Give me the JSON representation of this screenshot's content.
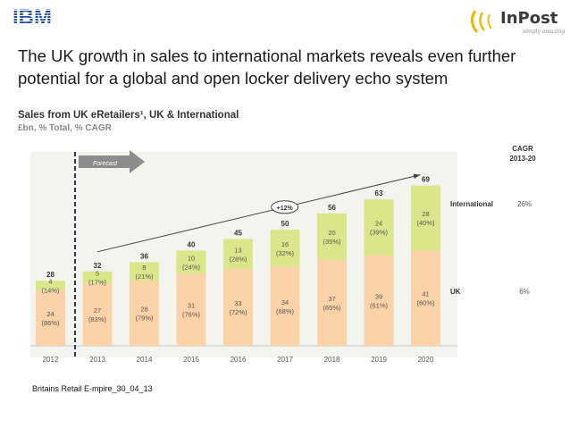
{
  "header": {
    "logo_left": "IBM",
    "logo_right": "InPost",
    "logo_right_tagline": "simply amazing",
    "headline_lines": [
      "The UK growth in sales to international markets reveals even further",
      "potential for a global and open locker delivery echo system"
    ]
  },
  "chart_data": {
    "type": "bar",
    "stacked": true,
    "title": "Sales from UK eRetailers¹, UK & International",
    "subtitle": "£bn, % Total, % CAGR",
    "categories": [
      "2012",
      "2013",
      "2014",
      "2015",
      "2016",
      "2017",
      "2018",
      "2019",
      "2020"
    ],
    "totals": [
      "28",
      "32",
      "36",
      "40",
      "45",
      "50",
      "56",
      "63",
      "69"
    ],
    "series": [
      {
        "name": "UK",
        "color": "#fcd2a8",
        "values": [
          24,
          27,
          28,
          31,
          33,
          34,
          37,
          39,
          41
        ],
        "labels": [
          "24",
          "27",
          "28",
          "31",
          "33",
          "34",
          "37",
          "39",
          "41"
        ],
        "pct": [
          "(86%)",
          "(83%)",
          "(79%)",
          "(76%)",
          "(72%)",
          "(68%)",
          "(65%)",
          "(61%)",
          "(60%)"
        ]
      },
      {
        "name": "International",
        "color": "#dbe68a",
        "values": [
          4,
          5,
          8,
          10,
          13,
          16,
          20,
          24,
          28
        ],
        "labels": [
          "4",
          "5",
          "8",
          "10",
          "13",
          "16",
          "20",
          "24",
          "28"
        ],
        "pct": [
          "(14%)",
          "(17%)",
          "(21%)",
          "(24%)",
          "(28%)",
          "(32%)",
          "(35%)",
          "(39%)",
          "(40%)"
        ]
      }
    ],
    "legend": [
      "International",
      "UK"
    ],
    "cagr_header": [
      "CAGR",
      "2013-20"
    ],
    "cagr": {
      "International": "26%",
      "UK": "6%"
    },
    "forecast_label": "Forecast",
    "growth_label": "+12%",
    "ylim": [
      0,
      75
    ]
  },
  "footer": {
    "source": "Britains Retail E-mpire_30_04_13"
  }
}
